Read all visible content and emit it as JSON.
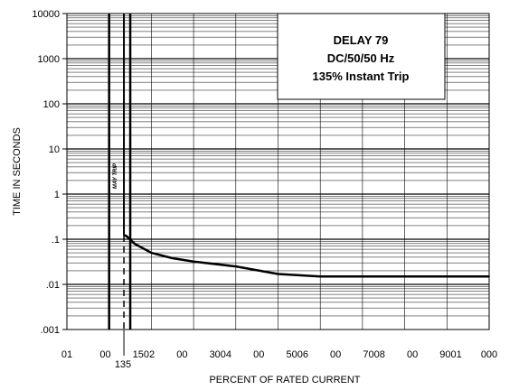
{
  "chart_data": {
    "type": "line",
    "title_lines": [
      "DELAY 79",
      "DC/50/50 Hz",
      "135% Instant Trip"
    ],
    "xlabel": "PERCENT OF RATED CURRENT",
    "ylabel": "TIME IN SECONDS",
    "x_tick_labels": [
      "01",
      "00",
      "1502",
      "00",
      "3004",
      "00",
      "5006",
      "00",
      "7008",
      "00",
      "9001",
      "000"
    ],
    "x_marker_label": "135",
    "x_marker_value": 135,
    "xlim": [
      0,
      1000
    ],
    "y_scale": "log",
    "ylim": [
      0.001,
      10000
    ],
    "y_tick_labels": [
      "10000",
      "1000",
      "100",
      "10",
      "1",
      ".1",
      ".01",
      ".001"
    ],
    "vertical_band_label": "MAY TRIP",
    "grid": true,
    "series": [
      {
        "x": [
          140,
          160,
          200,
          250,
          300,
          400,
          500,
          600,
          700,
          800,
          900,
          1000
        ],
        "y": [
          0.12,
          0.08,
          0.05,
          0.038,
          0.032,
          0.025,
          0.017,
          0.015,
          0.015,
          0.015,
          0.015,
          0.015
        ]
      }
    ]
  }
}
